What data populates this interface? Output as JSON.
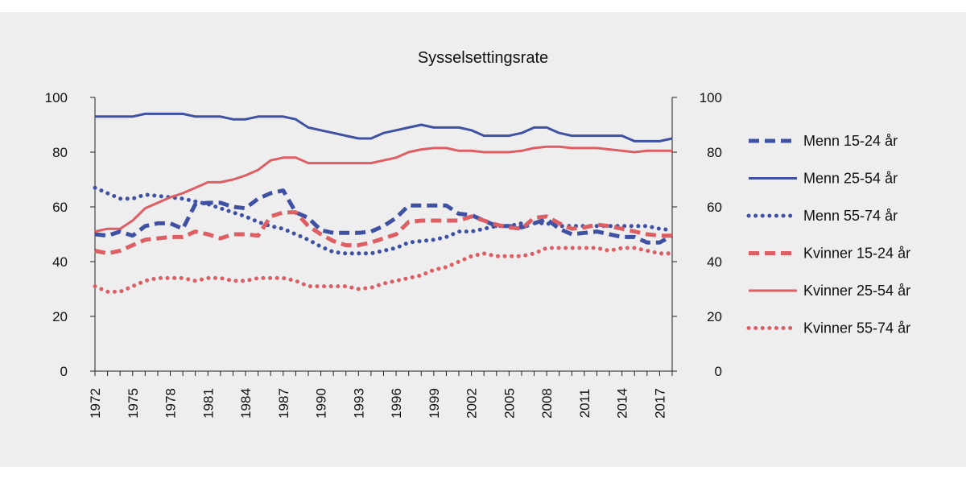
{
  "chart_data": {
    "type": "line",
    "title": "Sysselsettingsrate",
    "xlabel": "",
    "ylabel": "",
    "ylim": [
      0,
      100
    ],
    "yticks": [
      0,
      20,
      40,
      60,
      80,
      100
    ],
    "xlim": [
      1972,
      2018
    ],
    "xtick_labels": [
      "1972",
      "1975",
      "1978",
      "1981",
      "1984",
      "1987",
      "1990",
      "1993",
      "1996",
      "1999",
      "2002",
      "2005",
      "2008",
      "2011",
      "2014",
      "2017"
    ],
    "x": [
      1972,
      1973,
      1974,
      1975,
      1976,
      1977,
      1978,
      1979,
      1980,
      1981,
      1982,
      1983,
      1984,
      1985,
      1986,
      1987,
      1988,
      1989,
      1990,
      1991,
      1992,
      1993,
      1994,
      1995,
      1996,
      1997,
      1998,
      1999,
      2000,
      2001,
      2002,
      2003,
      2004,
      2005,
      2006,
      2007,
      2008,
      2009,
      2010,
      2011,
      2012,
      2013,
      2014,
      2015,
      2016,
      2017,
      2018
    ],
    "series": [
      {
        "name": "Menn 15-24 år",
        "color": "#3f51a3",
        "style": "dashed",
        "values": [
          50,
          49.5,
          51,
          49.5,
          53,
          54,
          54,
          52,
          61,
          61.5,
          61.5,
          60,
          59.5,
          63,
          65,
          66,
          58,
          56,
          51.5,
          50.5,
          50.5,
          50.5,
          51,
          53,
          56,
          60.5,
          60.5,
          60.5,
          60.5,
          57.5,
          57,
          55,
          53,
          53,
          52.5,
          54,
          55.5,
          52,
          50,
          50.5,
          51,
          50,
          49,
          49,
          47,
          47,
          49.5
        ]
      },
      {
        "name": "Menn 25-54 år",
        "color": "#3f51a3",
        "style": "solid",
        "values": [
          93,
          93,
          93,
          93,
          94,
          94,
          94,
          94,
          93,
          93,
          93,
          92,
          92,
          93,
          93,
          93,
          92,
          89,
          88,
          87,
          86,
          85,
          85,
          87,
          88,
          89,
          90,
          89,
          89,
          89,
          88,
          86,
          86,
          86,
          87,
          89,
          89,
          87,
          86,
          86,
          86,
          86,
          86,
          84,
          84,
          84,
          85
        ]
      },
      {
        "name": "Menn 55-74 år",
        "color": "#3f51a3",
        "style": "dotted",
        "values": [
          67,
          65,
          63,
          63,
          64.5,
          64,
          63.5,
          63,
          62,
          61,
          59.5,
          58,
          56.5,
          54.5,
          53,
          52,
          50,
          48,
          45.5,
          43.5,
          43,
          43,
          43,
          44,
          45,
          47,
          47.5,
          48,
          49,
          51,
          51,
          52,
          53,
          53,
          54,
          54,
          54,
          53,
          53,
          53,
          53,
          53,
          53,
          53,
          53,
          52,
          51.5
        ]
      },
      {
        "name": "Kvinner 15-24 år",
        "color": "#dd5f63",
        "style": "dashed",
        "values": [
          44,
          43,
          44,
          46,
          48,
          48.5,
          49,
          49,
          51,
          50,
          48.5,
          50,
          50,
          49.5,
          56.5,
          58,
          58,
          53,
          50,
          47.5,
          46,
          46,
          47,
          48.5,
          50,
          54.5,
          55,
          55,
          55,
          55,
          56.5,
          55,
          53.5,
          52.5,
          52,
          56,
          56.5,
          54,
          52,
          52.5,
          53.5,
          53,
          52,
          51,
          50,
          49.5,
          49.5
        ]
      },
      {
        "name": "Kvinner 25-54 år",
        "color": "#dd5f63",
        "style": "solid",
        "values": [
          51,
          52,
          52,
          55,
          59.5,
          61.5,
          63.5,
          65,
          67,
          69,
          69,
          70,
          71.5,
          73.5,
          77,
          78,
          78,
          76,
          76,
          76,
          76,
          76,
          76,
          77,
          78,
          80,
          81,
          81.5,
          81.5,
          80.5,
          80.5,
          80,
          80,
          80,
          80.5,
          81.5,
          82,
          82,
          81.5,
          81.5,
          81.5,
          81,
          80.5,
          80,
          80.5,
          80.5,
          80.5
        ]
      },
      {
        "name": "Kvinner 55-74 år",
        "color": "#dd5f63",
        "style": "dotted",
        "values": [
          31,
          29,
          29,
          31,
          33,
          34,
          34,
          34,
          33,
          34,
          34,
          33,
          33,
          34,
          34,
          34,
          33,
          31,
          31,
          31,
          31,
          30,
          30.5,
          32,
          33,
          34,
          35,
          37,
          38,
          40,
          42,
          43,
          42,
          42,
          42,
          43,
          45,
          45,
          45,
          45,
          45,
          44,
          45,
          45,
          44,
          43,
          43
        ]
      }
    ],
    "legend_position": "right"
  }
}
